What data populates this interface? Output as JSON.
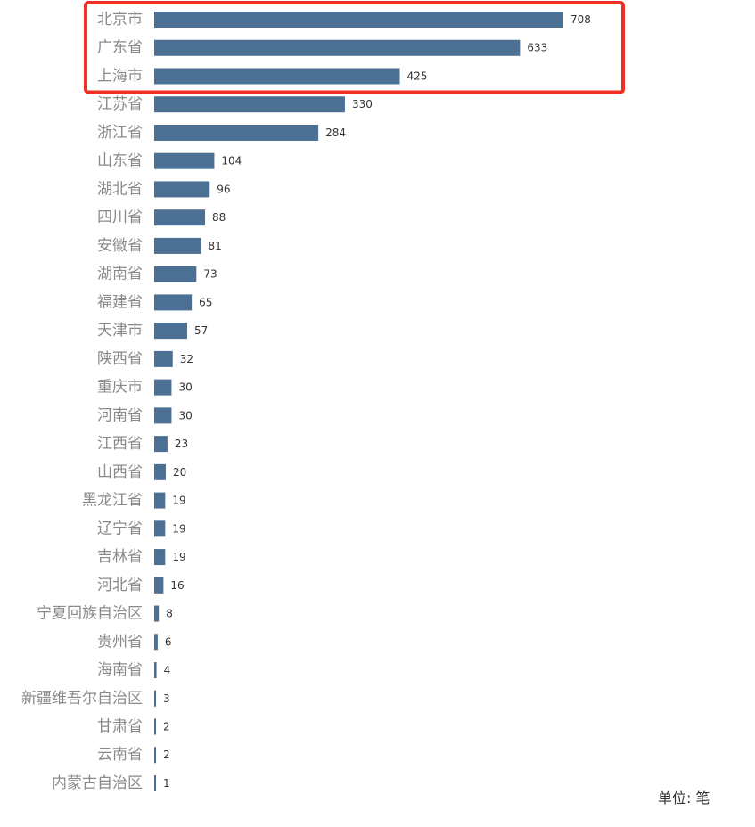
{
  "chart_data": {
    "type": "bar",
    "orientation": "horizontal",
    "categories": [
      "北京市",
      "广东省",
      "上海市",
      "江苏省",
      "浙江省",
      "山东省",
      "湖北省",
      "四川省",
      "安徽省",
      "湖南省",
      "福建省",
      "天津市",
      "陕西省",
      "重庆市",
      "河南省",
      "江西省",
      "山西省",
      "黑龙江省",
      "辽宁省",
      "吉林省",
      "河北省",
      "宁夏回族自治区",
      "贵州省",
      "海南省",
      "新疆维吾尔自治区",
      "甘肃省",
      "云南省",
      "内蒙古自治区"
    ],
    "values": [
      708,
      633,
      425,
      330,
      284,
      104,
      96,
      88,
      81,
      73,
      65,
      57,
      32,
      30,
      30,
      23,
      20,
      19,
      19,
      19,
      16,
      8,
      6,
      4,
      3,
      2,
      2,
      1
    ],
    "unit_label": "单位: 笔",
    "highlighted_categories": [
      "北京市",
      "广东省",
      "上海市"
    ],
    "bar_color": "#4c7094",
    "highlight_color": "#f03025",
    "label_color": "#8a8a8a",
    "grid": false,
    "legend": "none"
  }
}
